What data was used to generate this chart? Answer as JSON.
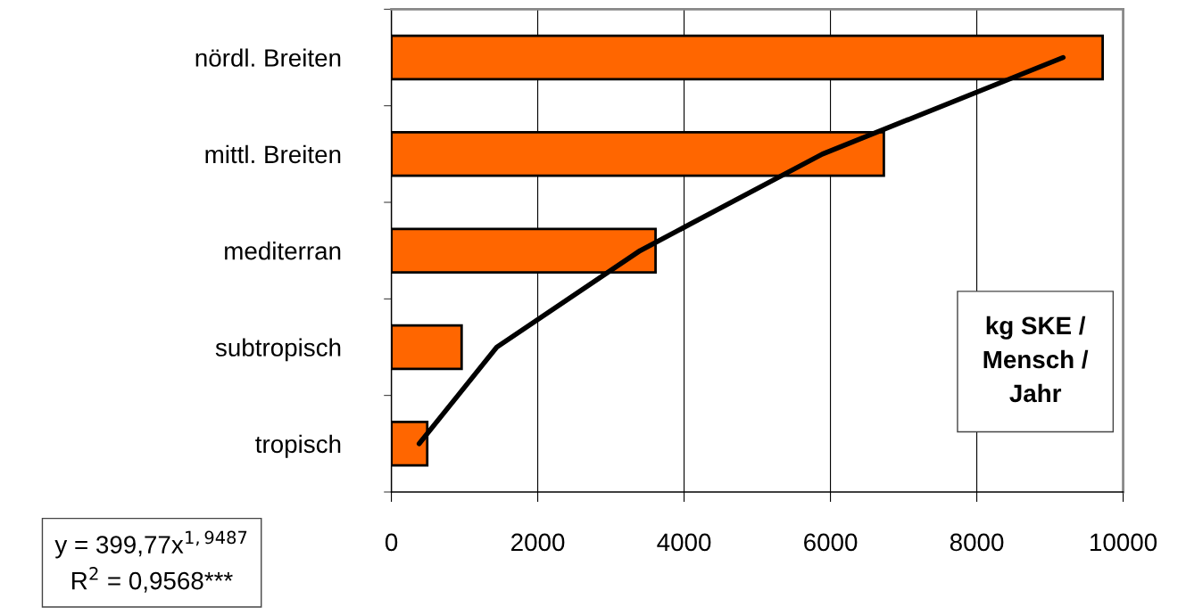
{
  "chart_data": {
    "type": "bar",
    "orientation": "horizontal",
    "categories": [
      "nördl. Breiten",
      "mittl. Breiten",
      "mediterran",
      "subtropisch",
      "tropisch"
    ],
    "series": [
      {
        "color": "#ff6600",
        "values": [
          9720,
          6730,
          3610,
          960,
          490
        ]
      },
      {
        "type": "line",
        "color": "#000000",
        "values": [
          9180,
          5890,
          3400,
          1440,
          380
        ],
        "line_style": "solid"
      }
    ],
    "xlabel": "kg SKE /\nMensch /\nJahr",
    "annotations": [
      "y = 399,77x$^{1,9487}$",
      "R$^{2}$ = 0,9568***"
    ],
    "xlim": [
      0,
      10000
    ],
    "xticks": [
      0,
      2000,
      4000,
      6000,
      8000,
      10000
    ],
    "grid": "x",
    "legend": false
  }
}
